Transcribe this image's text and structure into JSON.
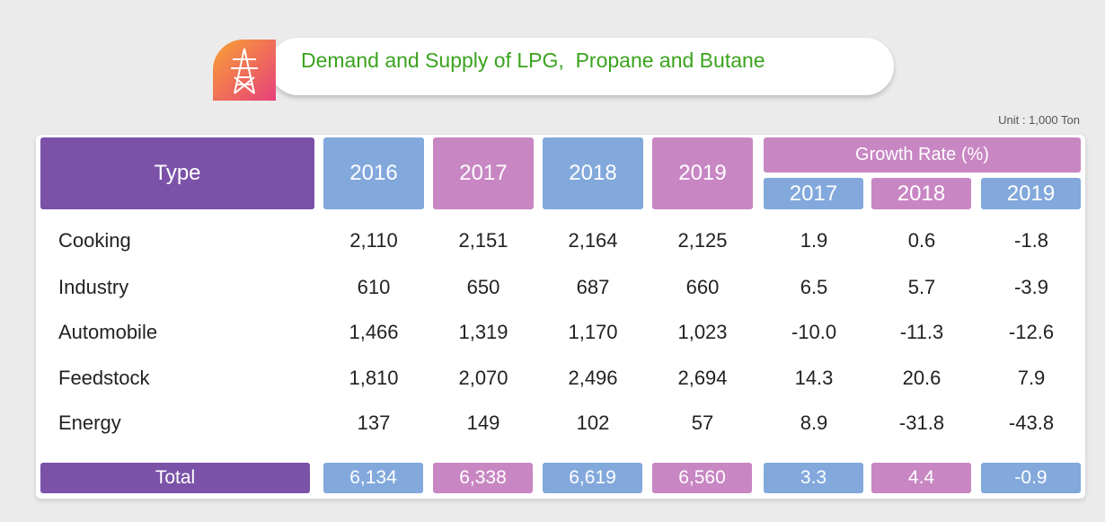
{
  "header": {
    "title": "Demand and Supply of LPG,  Propane and Butane",
    "unit": "Unit : 1,000 Ton"
  },
  "table": {
    "type_label": "Type",
    "years": [
      "2016",
      "2017",
      "2018",
      "2019"
    ],
    "growth_label": "Growth Rate (%)",
    "growth_years": [
      "2017",
      "2018",
      "2019"
    ],
    "rows": [
      [
        "Cooking",
        "2,110",
        "2,151",
        "2,164",
        "2,125",
        "1.9",
        "0.6",
        "-1.8"
      ],
      [
        "Industry",
        "610",
        "650",
        "687",
        "660",
        "6.5",
        "5.7",
        "-3.9"
      ],
      [
        "Automobile",
        "1,466",
        "1,319",
        "1,170",
        "1,023",
        "-10.0",
        "-11.3",
        "-12.6"
      ],
      [
        "Feedstock",
        "1,810",
        "2,070",
        "2,496",
        "2,694",
        "14.3",
        "20.6",
        "7.9"
      ],
      [
        "Energy",
        "137",
        "149",
        "102",
        "57",
        "8.9",
        "-31.8",
        "-43.8"
      ]
    ],
    "total": [
      "Total",
      "6,134",
      "6,338",
      "6,619",
      "6,560",
      "3.3",
      "4.4",
      "-0.9"
    ]
  }
}
